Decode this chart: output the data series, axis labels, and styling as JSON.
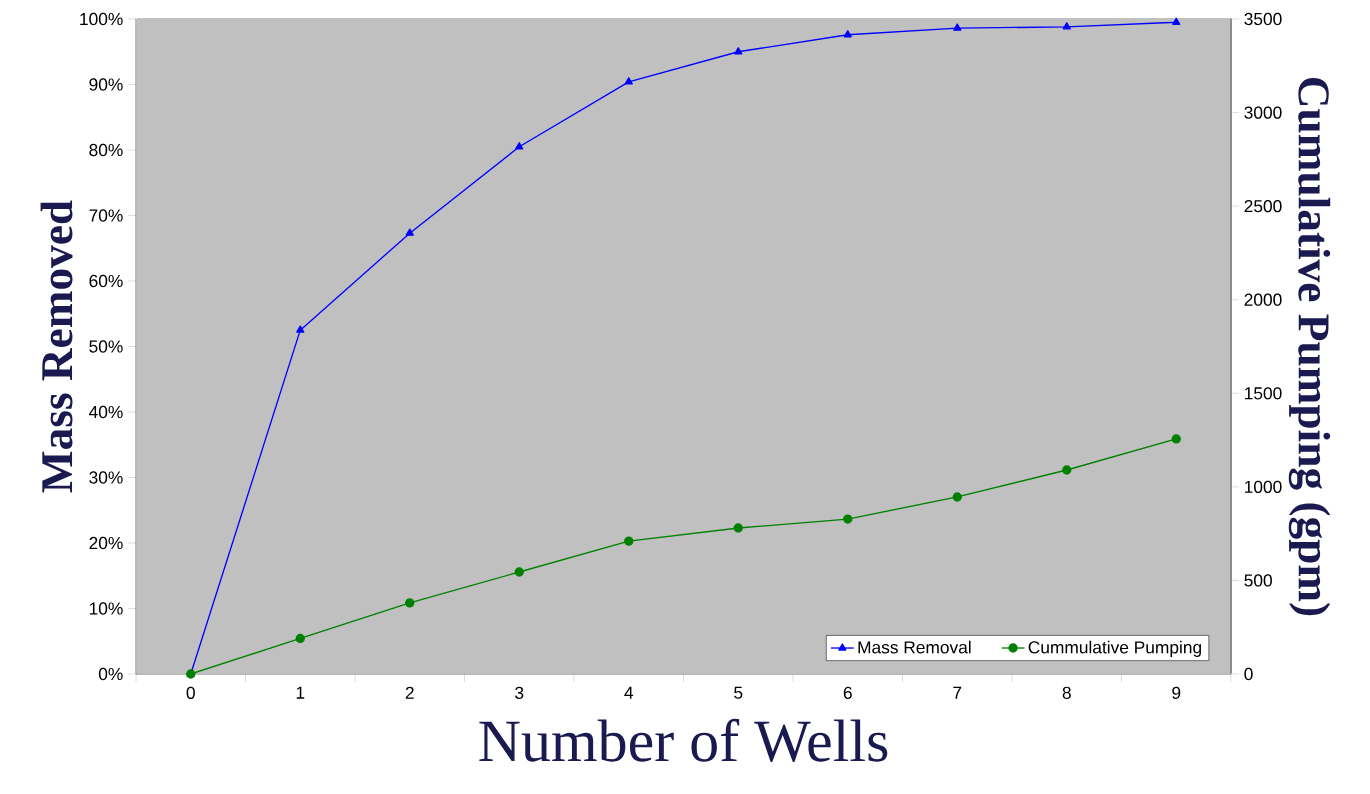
{
  "chart_data": {
    "type": "line",
    "xlabel": "Number of Wells",
    "ylabel": "Mass Removed",
    "y2label": "Cumulative Pumping (gpm)",
    "categories": [
      "0",
      "1",
      "2",
      "3",
      "4",
      "5",
      "6",
      "7",
      "8",
      "9"
    ],
    "series": [
      {
        "name": "Mass Removal",
        "color": "#0000ff",
        "marker": "triangle",
        "values": [
          0,
          52.5,
          67.3,
          80.5,
          90.4,
          95.0,
          97.6,
          98.6,
          98.8,
          99.5
        ]
      },
      {
        "name": "Cummulative Pumping",
        "color": "#008000",
        "marker": "circle",
        "axis": "y2",
        "values": [
          0,
          190,
          380,
          545,
          710,
          780,
          828,
          946,
          1090,
          1256
        ]
      }
    ],
    "ylim": [
      0,
      100
    ],
    "yticks": [
      {
        "value": 0,
        "label": "0%"
      },
      {
        "value": 10,
        "label": "10%"
      },
      {
        "value": 20,
        "label": "20%"
      },
      {
        "value": 30,
        "label": "30%"
      },
      {
        "value": 40,
        "label": "40%"
      },
      {
        "value": 50,
        "label": "50%"
      },
      {
        "value": 60,
        "label": "60%"
      },
      {
        "value": 70,
        "label": "70%"
      },
      {
        "value": 80,
        "label": "80%"
      },
      {
        "value": 90,
        "label": "90%"
      },
      {
        "value": 100,
        "label": "100%"
      }
    ],
    "y2lim": [
      0,
      3500
    ],
    "y2ticks": [
      0,
      500,
      1000,
      1500,
      2000,
      2500,
      3000,
      3500
    ],
    "grid": false,
    "legend": "bottom right"
  }
}
